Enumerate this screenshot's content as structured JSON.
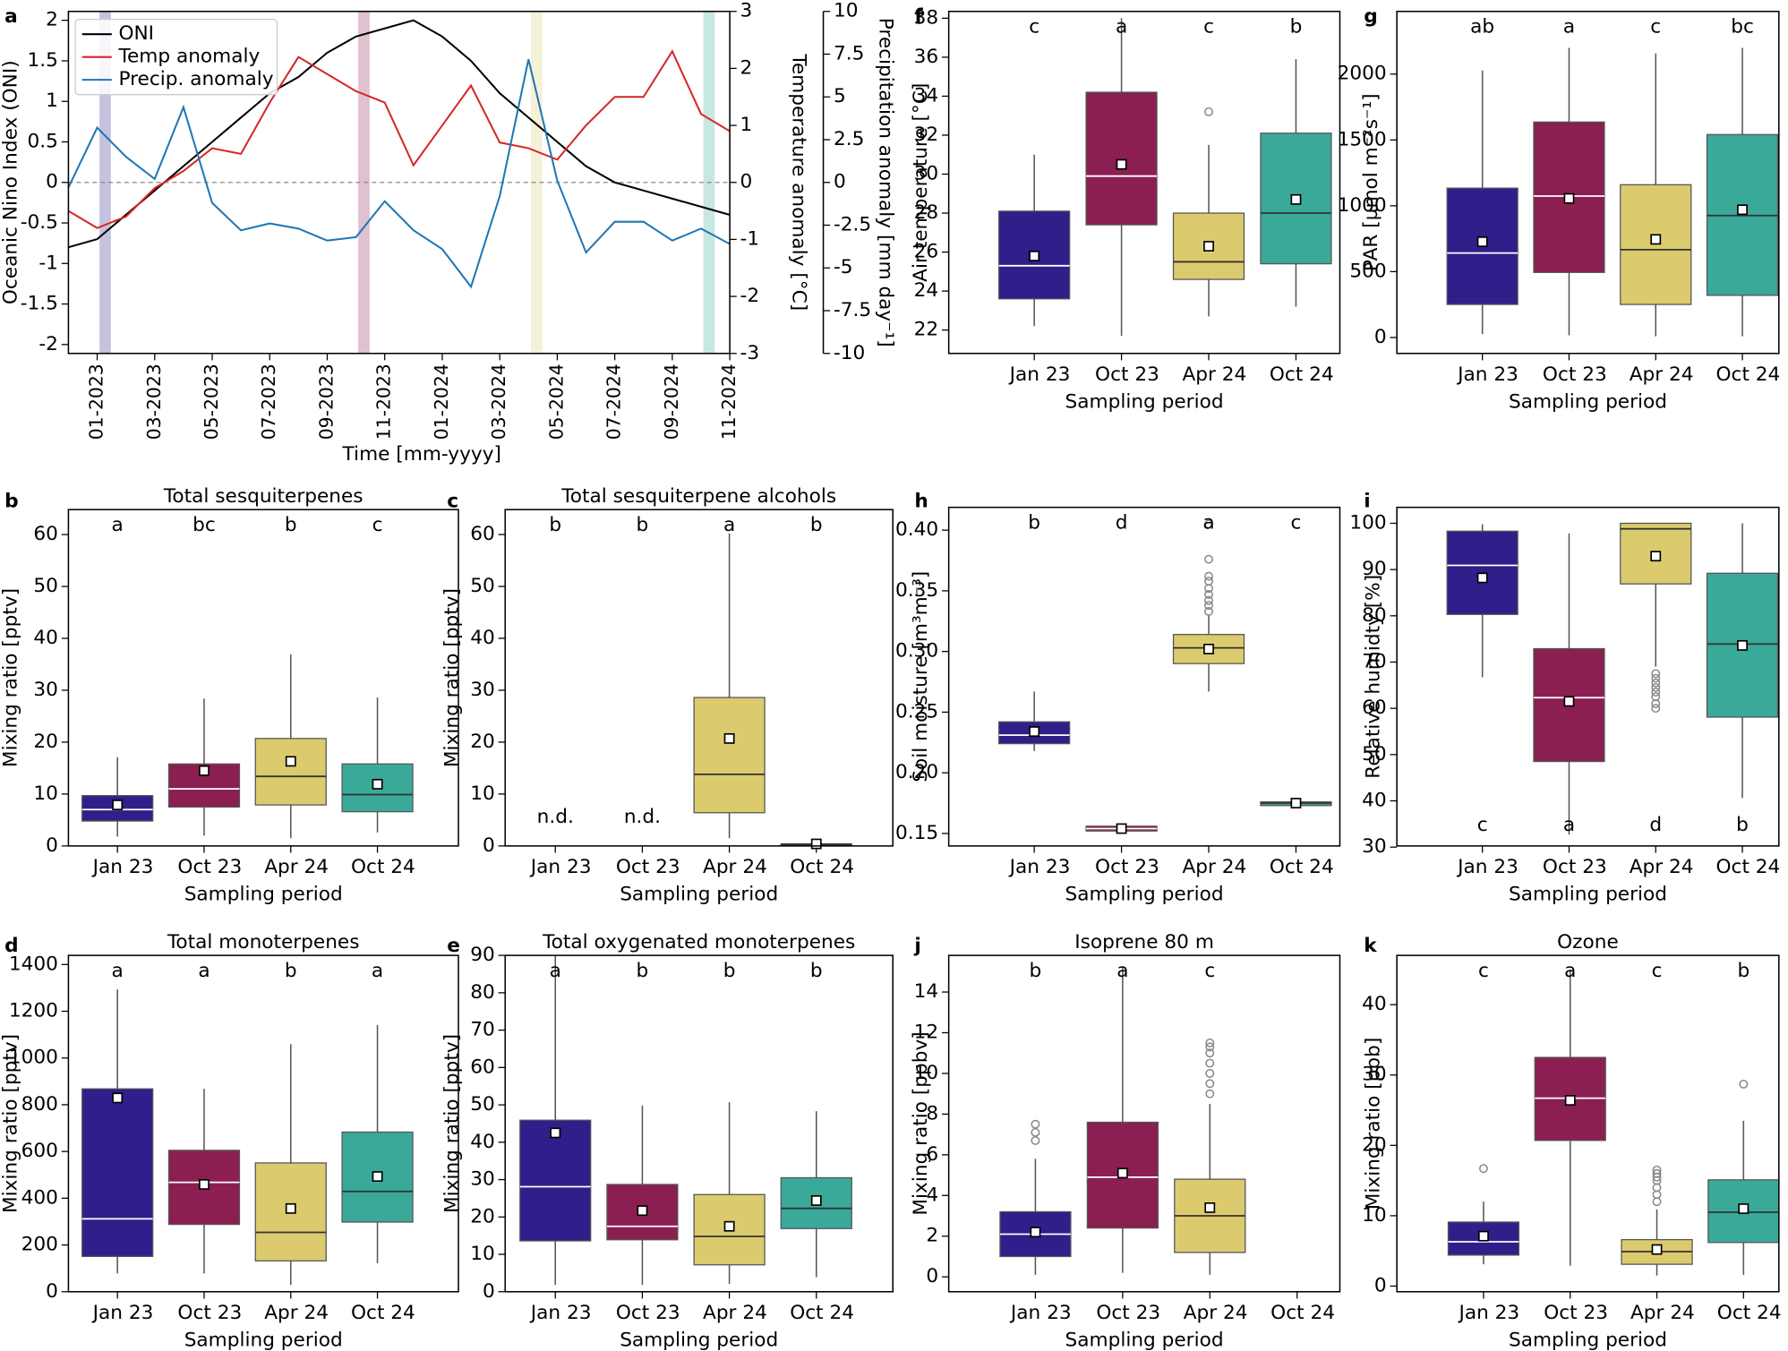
{
  "chart_data": [
    {
      "type": "line",
      "label": "a",
      "xlabel": "Time [mm-yyyy]",
      "ylabel": "Oceanic Nino Index (ONI)",
      "y2label": "Temperature anomaly [°C]",
      "y3label": "Precipitation anomaly [mm day⁻¹]",
      "x": [
        "12-2022",
        "01-2023",
        "02-2023",
        "03-2023",
        "04-2023",
        "05-2023",
        "06-2023",
        "07-2023",
        "08-2023",
        "09-2023",
        "10-2023",
        "11-2023",
        "12-2023",
        "01-2024",
        "02-2024",
        "03-2024",
        "04-2024",
        "05-2024",
        "06-2024",
        "07-2024",
        "08-2024",
        "09-2024",
        "10-2024",
        "11-2024"
      ],
      "xlim": [
        "12-2022",
        "11-2024"
      ],
      "xticks": [
        "01-2023",
        "03-2023",
        "05-2023",
        "07-2023",
        "09-2023",
        "11-2023",
        "01-2024",
        "03-2024",
        "05-2024",
        "07-2024",
        "09-2024",
        "11-2024"
      ],
      "ylim": [
        -2.11,
        2.11
      ],
      "yticks": [
        -2,
        -1.5,
        -1,
        -0.5,
        0,
        0.5,
        1,
        1.5,
        2
      ],
      "y2lim": [
        -3,
        3
      ],
      "y2ticks": [
        -3,
        -2,
        -1,
        0,
        1,
        2,
        3
      ],
      "y3lim": [
        -10,
        10
      ],
      "y3ticks": [
        -10,
        -7.5,
        -5,
        -2.5,
        0,
        2.5,
        5,
        7.5,
        10
      ],
      "series": [
        {
          "name": "ONI",
          "color": "#000000",
          "axis": "y",
          "values": [
            -0.8,
            -0.7,
            -0.4,
            -0.1,
            0.2,
            0.5,
            0.8,
            1.1,
            1.3,
            1.6,
            1.8,
            1.9,
            2.0,
            1.8,
            1.5,
            1.1,
            0.8,
            0.5,
            0.2,
            0.0,
            -0.1,
            -0.2,
            -0.3,
            -0.4
          ]
        },
        {
          "name": "Temp anomaly",
          "color": "#d62728",
          "axis": "y2",
          "values": [
            -0.5,
            -0.8,
            -0.6,
            -0.1,
            0.2,
            0.6,
            0.5,
            1.4,
            2.2,
            1.9,
            1.6,
            1.4,
            0.3,
            1.0,
            1.7,
            0.7,
            0.6,
            0.4,
            1.0,
            1.5,
            1.5,
            2.3,
            1.2,
            0.9
          ]
        },
        {
          "name": "Precip. anomaly",
          "color": "#1f77b4",
          "axis": "y3",
          "values": [
            -0.3,
            3.2,
            1.5,
            0.2,
            4.4,
            -1.2,
            -2.8,
            -2.4,
            -2.7,
            -3.4,
            -3.2,
            -1.1,
            -2.8,
            -3.9,
            -6.1,
            -0.8,
            7.2,
            0.1,
            -4.1,
            -2.3,
            -2.3,
            -3.4,
            -2.7,
            -3.6
          ]
        }
      ],
      "highlights": [
        {
          "x": "01-2023",
          "color": "#2e1f8a"
        },
        {
          "x": "10-2023",
          "color": "#8b1f52"
        },
        {
          "x": "04-2024",
          "color": "#dccb6e"
        },
        {
          "x": "10-2024",
          "color": "#3aa99a"
        }
      ],
      "legend": "upper left"
    },
    {
      "type": "box",
      "label": "f",
      "xlabel": "Sampling period",
      "ylabel": "Air temperature [°C]",
      "categories": [
        "Jan 23",
        "Oct 23",
        "Apr 24",
        "Oct 24"
      ],
      "colors": [
        "#2e1f8a",
        "#8b1f52",
        "#dccb6e",
        "#3aa99a"
      ],
      "median_colors": [
        "#ffffff",
        "#ffffff",
        "#333333",
        "#333333"
      ],
      "ylim": [
        20.8,
        38.35
      ],
      "yticks": [
        22,
        24,
        26,
        28,
        30,
        32,
        34,
        36,
        38
      ],
      "letters": [
        "c",
        "a",
        "c",
        "b"
      ],
      "letters_position": "top",
      "boxes": [
        {
          "whislo": 22.2,
          "q1": 23.6,
          "med": 25.3,
          "q3": 28.1,
          "whishi": 31.0,
          "mean": 25.8,
          "fliers": []
        },
        {
          "whislo": 21.7,
          "q1": 27.4,
          "med": 29.9,
          "q3": 34.2,
          "whishi": 38.0,
          "mean": 30.5,
          "fliers": []
        },
        {
          "whislo": 22.7,
          "q1": 24.6,
          "med": 25.5,
          "q3": 28.0,
          "whishi": 31.5,
          "mean": 26.3,
          "fliers": [
            33.2
          ]
        },
        {
          "whislo": 23.2,
          "q1": 25.4,
          "med": 28.0,
          "q3": 32.1,
          "whishi": 35.9,
          "mean": 28.7,
          "fliers": []
        }
      ]
    },
    {
      "type": "box",
      "label": "g",
      "xlabel": "Sampling period",
      "ylabel": "PAR [µmol m⁻²s⁻¹]",
      "categories": [
        "Jan 23",
        "Oct 23",
        "Apr 24",
        "Oct 24"
      ],
      "colors": [
        "#2e1f8a",
        "#8b1f52",
        "#dccb6e",
        "#3aa99a"
      ],
      "median_colors": [
        "#ffffff",
        "#ffffff",
        "#333333",
        "#333333"
      ],
      "ylim": [
        -121,
        2476
      ],
      "yticks": [
        0,
        500,
        1000,
        1500,
        2000
      ],
      "letters": [
        "ab",
        "a",
        "c",
        "bc"
      ],
      "letters_position": "top",
      "boxes": [
        {
          "whislo": 26,
          "q1": 251,
          "med": 641,
          "q3": 1134,
          "whishi": 2026,
          "mean": 727,
          "fliers": []
        },
        {
          "whislo": 17,
          "q1": 494,
          "med": 1074,
          "q3": 1636,
          "whishi": 2199,
          "mean": 1056,
          "fliers": []
        },
        {
          "whislo": 9,
          "q1": 251,
          "med": 667,
          "q3": 1160,
          "whishi": 2156,
          "mean": 745,
          "fliers": []
        },
        {
          "whislo": 9,
          "q1": 320,
          "med": 926,
          "q3": 1541,
          "whishi": 2199,
          "mean": 970,
          "fliers": []
        }
      ]
    },
    {
      "type": "box",
      "label": "b",
      "title": "Total sesquiterpenes",
      "xlabel": "Sampling period",
      "ylabel": "Mixing ratio [pptv]",
      "categories": [
        "Jan 23",
        "Oct 23",
        "Apr 24",
        "Oct 24"
      ],
      "colors": [
        "#2e1f8a",
        "#8b1f52",
        "#dccb6e",
        "#3aa99a"
      ],
      "median_colors": [
        "#ffffff",
        "#ffffff",
        "#333333",
        "#333333"
      ],
      "ylim": [
        0,
        64.8
      ],
      "yticks": [
        0,
        10,
        20,
        30,
        40,
        50,
        60
      ],
      "letters": [
        "a",
        "bc",
        "b",
        "c"
      ],
      "letters_position": "top",
      "boxes": [
        {
          "whislo": 1.8,
          "q1": 4.8,
          "med": 7.0,
          "q3": 9.7,
          "whishi": 17.1,
          "mean": 7.9,
          "fliers": []
        },
        {
          "whislo": 2.0,
          "q1": 7.5,
          "med": 11.0,
          "q3": 15.8,
          "whishi": 28.4,
          "mean": 14.5,
          "fliers": []
        },
        {
          "whislo": 1.5,
          "q1": 7.9,
          "med": 13.4,
          "q3": 20.7,
          "whishi": 36.9,
          "mean": 16.3,
          "fliers": []
        },
        {
          "whislo": 2.6,
          "q1": 6.6,
          "med": 9.9,
          "q3": 15.8,
          "whishi": 28.6,
          "mean": 11.9,
          "fliers": []
        }
      ]
    },
    {
      "type": "box",
      "label": "c",
      "title": "Total sesquiterpene alcohols",
      "xlabel": "Sampling period",
      "ylabel": "Mixing ratio [pptv]",
      "categories": [
        "Jan 23",
        "Oct 23",
        "Apr 24",
        "Oct 24"
      ],
      "colors": [
        "#2e1f8a",
        "#8b1f52",
        "#dccb6e",
        "#3aa99a"
      ],
      "median_colors": [
        "#ffffff",
        "#ffffff",
        "#333333",
        "#333333"
      ],
      "ylim": [
        0,
        64.8
      ],
      "yticks": [
        0,
        10,
        20,
        30,
        40,
        50,
        60
      ],
      "letters": [
        "b",
        "b",
        "a",
        "b"
      ],
      "letters_position": "top",
      "annotations": [
        "n.d.",
        "n.d.",
        null,
        null
      ],
      "boxes": [
        null,
        null,
        {
          "whislo": 1.5,
          "q1": 6.4,
          "med": 13.8,
          "q3": 28.6,
          "whishi": 60.2,
          "mean": 20.7,
          "fliers": []
        },
        {
          "whislo": 0,
          "q1": 0.2,
          "med": 0.3,
          "q3": 0.4,
          "whishi": 0.6,
          "mean": 0.4,
          "fliers": []
        }
      ]
    },
    {
      "type": "box",
      "label": "h",
      "xlabel": "Sampling period",
      "ylabel": "Soil moisture [m³m⁻³]",
      "categories": [
        "Jan 23",
        "Oct 23",
        "Apr 24",
        "Oct 24"
      ],
      "colors": [
        "#2e1f8a",
        "#8b1f52",
        "#dccb6e",
        "#3aa99a"
      ],
      "median_colors": [
        "#ffffff",
        "#ffffff",
        "#333333",
        "#333333"
      ],
      "ylim": [
        0.1397,
        0.4188
      ],
      "yticks": [
        0.15,
        {
          "value": 0.2,
          "label": "0.20"
        },
        0.25,
        {
          "value": 0.3,
          "label": "0.30"
        },
        0.35,
        {
          "value": 0.4,
          "label": "0.40"
        }
      ],
      "letters": [
        "b",
        "d",
        "a",
        "c"
      ],
      "letters_position": "top",
      "boxes": [
        {
          "whislo": 0.218,
          "q1": 0.224,
          "med": 0.231,
          "q3": 0.242,
          "whishi": 0.267,
          "mean": 0.234,
          "fliers": []
        },
        {
          "whislo": 0.15,
          "q1": 0.152,
          "med": 0.154,
          "q3": 0.156,
          "whishi": 0.158,
          "mean": 0.154,
          "fliers": []
        },
        {
          "whislo": 0.267,
          "q1": 0.29,
          "med": 0.303,
          "q3": 0.314,
          "whishi": 0.33,
          "mean": 0.302,
          "fliers": [
            0.333,
            0.338,
            0.342,
            0.347,
            0.352,
            0.358,
            0.362,
            0.376,
            0.405
          ]
        },
        {
          "whislo": 0.172,
          "q1": 0.173,
          "med": 0.175,
          "q3": 0.176,
          "whishi": 0.177,
          "mean": 0.175,
          "fliers": []
        }
      ]
    },
    {
      "type": "box",
      "label": "i",
      "xlabel": "Sampling period",
      "ylabel": "Relative humidty [%]",
      "categories": [
        "Jan 23",
        "Oct 23",
        "Apr 24",
        "Oct 24"
      ],
      "colors": [
        "#2e1f8a",
        "#8b1f52",
        "#dccb6e",
        "#3aa99a"
      ],
      "median_colors": [
        "#ffffff",
        "#ffffff",
        "#333333",
        "#333333"
      ],
      "ylim": [
        30.25,
        103.45
      ],
      "yticks": [
        30,
        40,
        50,
        60,
        70,
        80,
        90,
        100
      ],
      "letters": [
        "c",
        "a",
        "d",
        "b"
      ],
      "letters_position": "bottom",
      "boxes": [
        {
          "whislo": 66.7,
          "q1": 80.3,
          "med": 90.9,
          "q3": 98.3,
          "whishi": 99.8,
          "mean": 88.2,
          "fliers": []
        },
        {
          "whislo": 32.7,
          "q1": 48.5,
          "med": 62.3,
          "q3": 72.9,
          "whishi": 97.8,
          "mean": 61.5,
          "fliers": []
        },
        {
          "whislo": 69.0,
          "q1": 86.9,
          "med": 98.8,
          "q3": 100,
          "whishi": 100,
          "mean": 92.9,
          "fliers": [
            67.5,
            66.5,
            65.5,
            64.5,
            63.5,
            62.5,
            61,
            60
          ]
        },
        {
          "whislo": 40.6,
          "q1": 58.1,
          "med": 73.9,
          "q3": 89.2,
          "whishi": 100,
          "mean": 73.6,
          "fliers": []
        }
      ]
    },
    {
      "type": "box",
      "label": "d",
      "title": "Total monoterpenes",
      "xlabel": "Sampling period",
      "ylabel": "Mixing ratio [pptv]",
      "categories": [
        "Jan 23",
        "Oct 23",
        "Apr 24",
        "Oct 24"
      ],
      "colors": [
        "#2e1f8a",
        "#8b1f52",
        "#dccb6e",
        "#3aa99a"
      ],
      "median_colors": [
        "#ffffff",
        "#ffffff",
        "#333333",
        "#333333"
      ],
      "ylim": [
        0,
        1439
      ],
      "yticks": [
        0,
        200,
        400,
        600,
        800,
        1000,
        1200,
        1400
      ],
      "letters": [
        "a",
        "a",
        "b",
        "a"
      ],
      "letters_position": "top",
      "boxes": [
        {
          "whislo": 78,
          "q1": 151,
          "med": 312,
          "q3": 868,
          "whishi": 1293,
          "mean": 829,
          "fliers": []
        },
        {
          "whislo": 78,
          "q1": 288,
          "med": 468,
          "q3": 605,
          "whishi": 868,
          "mean": 459,
          "fliers": []
        },
        {
          "whislo": 29,
          "q1": 132,
          "med": 254,
          "q3": 551,
          "whishi": 1059,
          "mean": 356,
          "fliers": []
        },
        {
          "whislo": 122,
          "q1": 298,
          "med": 429,
          "q3": 683,
          "whishi": 1141,
          "mean": 493,
          "fliers": []
        }
      ]
    },
    {
      "type": "box",
      "label": "e",
      "title": "Total oxygenated monoterpenes",
      "xlabel": "Sampling period",
      "ylabel": "Mixing ratio [pptv]",
      "categories": [
        "Jan 23",
        "Oct 23",
        "Apr 24",
        "Oct 24"
      ],
      "colors": [
        "#2e1f8a",
        "#8b1f52",
        "#dccb6e",
        "#3aa99a"
      ],
      "median_colors": [
        "#ffffff",
        "#ffffff",
        "#333333",
        "#333333"
      ],
      "ylim": [
        0,
        90
      ],
      "yticks": [
        0,
        10,
        20,
        30,
        40,
        50,
        60,
        70,
        80,
        90
      ],
      "letters": [
        "a",
        "b",
        "b",
        "b"
      ],
      "letters_position": "top",
      "boxes": [
        {
          "whislo": 1.8,
          "q1": 13.6,
          "med": 28.1,
          "q3": 45.9,
          "whishi": 90,
          "mean": 42.5,
          "fliers": []
        },
        {
          "whislo": 1.8,
          "q1": 13.9,
          "med": 17.5,
          "q3": 28.7,
          "whishi": 49.8,
          "mean": 21.7,
          "fliers": []
        },
        {
          "whislo": 2.1,
          "q1": 7.2,
          "med": 14.8,
          "q3": 26.0,
          "whishi": 50.7,
          "mean": 17.5,
          "fliers": []
        },
        {
          "whislo": 3.9,
          "q1": 16.9,
          "med": 22.3,
          "q3": 30.5,
          "whishi": 48.3,
          "mean": 24.4,
          "fliers": []
        }
      ]
    },
    {
      "type": "box",
      "label": "j",
      "title": "Isoprene 80 m",
      "xlabel": "Sampling period",
      "ylabel": "Mixing ratio [ppbv]",
      "categories": [
        "Jan 23",
        "Oct 23",
        "Apr 24",
        "Oct 24"
      ],
      "colors": [
        "#2e1f8a",
        "#8b1f52",
        "#dccb6e",
        "#3aa99a"
      ],
      "median_colors": [
        "#ffffff",
        "#ffffff",
        "#333333",
        "#333333"
      ],
      "ylim": [
        -0.73,
        15.8
      ],
      "yticks": [
        0,
        2,
        4,
        6,
        8,
        10,
        12,
        14
      ],
      "letters": [
        "b",
        "a",
        "c",
        null
      ],
      "letters_position": "top",
      "boxes": [
        {
          "whislo": 0.1,
          "q1": 1.0,
          "med": 2.1,
          "q3": 3.2,
          "whishi": 5.8,
          "mean": 2.2,
          "fliers": [
            6.7,
            7.1,
            7.5
          ]
        },
        {
          "whislo": 0.2,
          "q1": 2.4,
          "med": 4.9,
          "q3": 7.6,
          "whishi": 15.2,
          "mean": 5.1,
          "fliers": []
        },
        {
          "whislo": 0.1,
          "q1": 1.2,
          "med": 3.0,
          "q3": 4.8,
          "whishi": 8.5,
          "mean": 3.4,
          "fliers": [
            9.0,
            9.5,
            10.0,
            10.5,
            11.0,
            11.3,
            11.5
          ]
        },
        null
      ]
    },
    {
      "type": "box",
      "label": "k",
      "title": "Ozone",
      "xlabel": "Sampling period",
      "ylabel": "Mixing ratio [ppb]",
      "categories": [
        "Jan 23",
        "Oct 23",
        "Apr 24",
        "Oct 24"
      ],
      "colors": [
        "#2e1f8a",
        "#8b1f52",
        "#dccb6e",
        "#3aa99a"
      ],
      "median_colors": [
        "#ffffff",
        "#ffffff",
        "#333333",
        "#333333"
      ],
      "ylim": [
        -0.8,
        47.0
      ],
      "yticks": [
        0,
        10,
        20,
        30,
        40
      ],
      "letters": [
        "c",
        "a",
        "c",
        "b"
      ],
      "letters_position": "top",
      "boxes": [
        {
          "whislo": 3.1,
          "q1": 4.4,
          "med": 6.3,
          "q3": 9.1,
          "whishi": 12.0,
          "mean": 7.1,
          "fliers": [
            16.7
          ]
        },
        {
          "whislo": 2.9,
          "q1": 20.7,
          "med": 26.7,
          "q3": 32.5,
          "whishi": 45.0,
          "mean": 26.4,
          "fliers": []
        },
        {
          "whislo": 1.5,
          "q1": 3.1,
          "med": 4.9,
          "q3": 6.6,
          "whishi": 10.9,
          "mean": 5.2,
          "fliers": [
            12,
            13,
            14,
            15,
            15.5,
            16,
            16.5
          ]
        },
        {
          "whislo": 1.6,
          "q1": 6.2,
          "med": 10.5,
          "q3": 15.1,
          "whishi": 23.5,
          "mean": 11.0,
          "fliers": [
            28.7
          ]
        }
      ]
    }
  ]
}
